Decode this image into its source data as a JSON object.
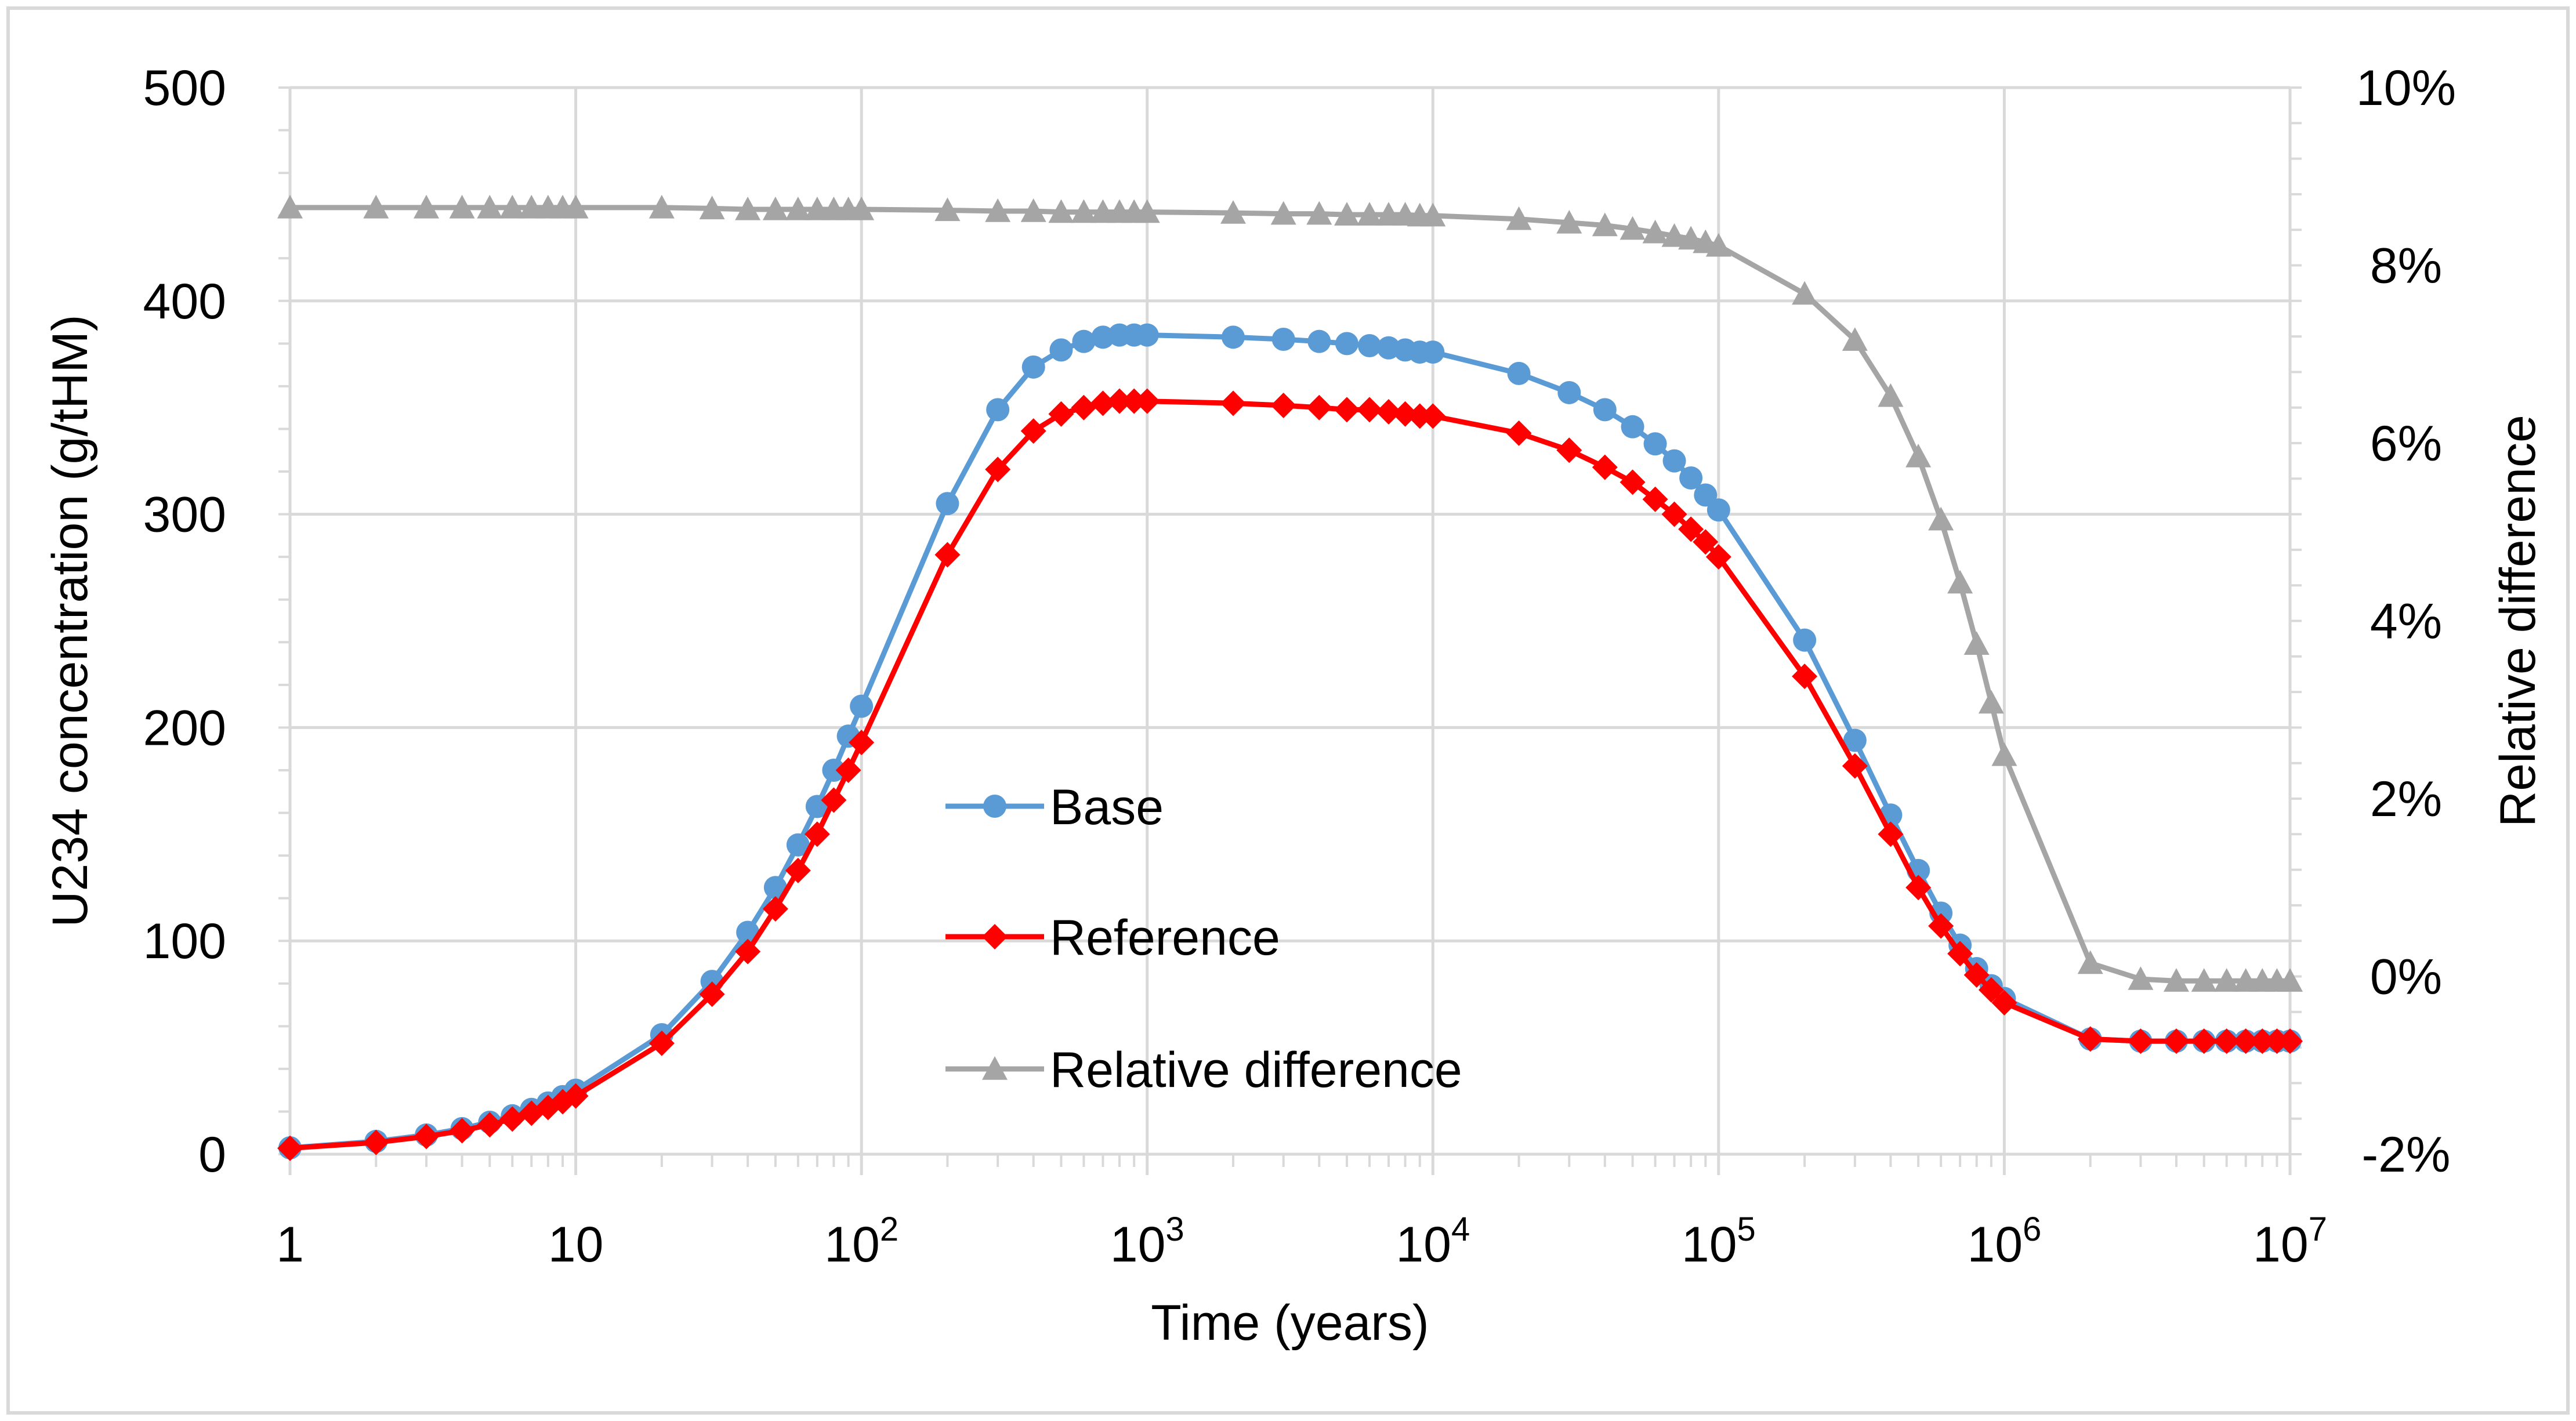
{
  "chart_data": {
    "type": "line",
    "xlabel": "Time (years)",
    "ylabel": "U234 concentration (g/tHM)",
    "y2label": "Relative difference",
    "xscale": "log",
    "xlim": [
      1,
      10000000
    ],
    "ylim": [
      0,
      500
    ],
    "y2lim": [
      -0.02,
      0.1
    ],
    "grid": true,
    "legend_position": "center",
    "x_ticks": [
      {
        "value": 1,
        "base": "1",
        "exp": ""
      },
      {
        "value": 10,
        "base": "10",
        "exp": ""
      },
      {
        "value": 100,
        "base": "10",
        "exp": "2"
      },
      {
        "value": 1000,
        "base": "10",
        "exp": "3"
      },
      {
        "value": 10000,
        "base": "10",
        "exp": "4"
      },
      {
        "value": 100000,
        "base": "10",
        "exp": "5"
      },
      {
        "value": 1000000,
        "base": "10",
        "exp": "6"
      },
      {
        "value": 10000000,
        "base": "10",
        "exp": "7"
      }
    ],
    "y_ticks": [
      {
        "value": 0,
        "label": "0"
      },
      {
        "value": 100,
        "label": "100"
      },
      {
        "value": 200,
        "label": "200"
      },
      {
        "value": 300,
        "label": "300"
      },
      {
        "value": 400,
        "label": "400"
      },
      {
        "value": 500,
        "label": "500"
      }
    ],
    "y2_ticks": [
      {
        "value": -0.02,
        "label": "-2%"
      },
      {
        "value": 0,
        "label": "0%"
      },
      {
        "value": 0.02,
        "label": "2%"
      },
      {
        "value": 0.04,
        "label": "4%"
      },
      {
        "value": 0.06,
        "label": "6%"
      },
      {
        "value": 0.08,
        "label": "8%"
      },
      {
        "value": 0.1,
        "label": "10%"
      }
    ],
    "x": [
      1,
      2,
      3,
      4,
      5,
      6,
      7,
      8,
      9,
      10,
      20,
      30,
      40,
      50,
      60,
      70,
      80,
      90,
      100,
      200,
      300,
      400,
      500,
      600,
      700,
      800,
      900,
      1000,
      2000,
      3000,
      4000,
      5000,
      6000,
      7000,
      8000,
      9000,
      10000,
      20000,
      30000,
      40000,
      50000,
      60000,
      70000,
      80000,
      90000,
      100000,
      200000,
      300000,
      400000,
      500000,
      600000,
      700000,
      800000,
      900000,
      1000000,
      2000000,
      3000000,
      4000000,
      5000000,
      6000000,
      7000000,
      8000000,
      9000000,
      10000000
    ],
    "series": [
      {
        "name": "Base",
        "axis": "left",
        "color": "#5B9BD5",
        "marker": "circle",
        "values": [
          3,
          6,
          9,
          12,
          15,
          18,
          21,
          24,
          27,
          30,
          56,
          81,
          104,
          125,
          145,
          163,
          180,
          196,
          210,
          305,
          349,
          369,
          377,
          381,
          383,
          384,
          384,
          384,
          383,
          382,
          381,
          380,
          379,
          378,
          377,
          376,
          376,
          366,
          357,
          349,
          341,
          333,
          325,
          317,
          309,
          302,
          241,
          194,
          159,
          133,
          113,
          98,
          87,
          79,
          73,
          54,
          53,
          53,
          53,
          53,
          53,
          53,
          53,
          53
        ]
      },
      {
        "name": "Reference",
        "axis": "left",
        "color": "#FF0000",
        "marker": "diamond",
        "values": [
          2.8,
          5.5,
          8.3,
          11,
          13.8,
          16.5,
          19.2,
          21.9,
          24.6,
          27.3,
          52,
          75,
          95,
          115,
          133,
          150,
          166,
          180,
          193,
          281,
          321,
          339,
          347,
          350,
          352,
          353,
          353,
          353,
          352,
          351,
          350,
          349,
          349,
          348,
          347,
          346,
          346,
          338,
          330,
          322,
          315,
          307,
          300,
          293,
          287,
          280,
          224,
          182,
          150,
          125,
          107,
          94,
          84,
          77,
          71,
          54,
          53,
          53,
          53,
          53,
          53,
          53,
          53,
          53
        ]
      },
      {
        "name": "Relative difference",
        "axis": "right",
        "color": "#A5A5A5",
        "marker": "triangle",
        "values": [
          0.0865,
          0.0865,
          0.0865,
          0.0865,
          0.0865,
          0.0865,
          0.0865,
          0.0865,
          0.0865,
          0.0865,
          0.0865,
          0.0864,
          0.0863,
          0.0863,
          0.0863,
          0.0863,
          0.0863,
          0.0863,
          0.0863,
          0.0862,
          0.0861,
          0.0861,
          0.086,
          0.086,
          0.086,
          0.086,
          0.086,
          0.086,
          0.0859,
          0.0858,
          0.0858,
          0.0857,
          0.0857,
          0.0857,
          0.0857,
          0.0856,
          0.0856,
          0.0852,
          0.0848,
          0.0845,
          0.0841,
          0.0837,
          0.0833,
          0.083,
          0.0826,
          0.0822,
          0.0768,
          0.0716,
          0.0653,
          0.0585,
          0.0514,
          0.0443,
          0.0374,
          0.0308,
          0.0249,
          0.0015,
          -0.0003,
          -0.0005,
          -0.0005,
          -0.0005,
          -0.0005,
          -0.0005,
          -0.0005,
          -0.0005
        ]
      }
    ]
  }
}
